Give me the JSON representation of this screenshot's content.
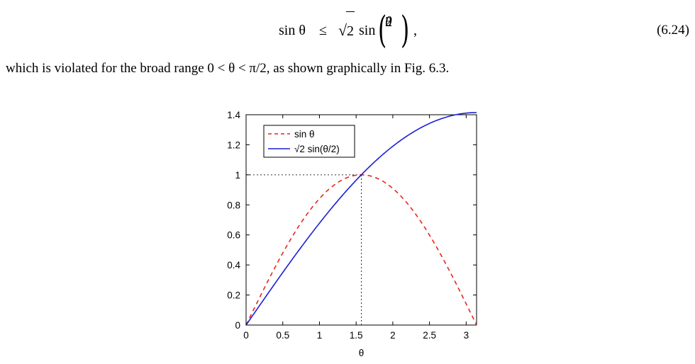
{
  "equation": {
    "lhs": "sin θ",
    "relation": "≤",
    "sqrt_radicand": "2",
    "func": "sin",
    "frac_numerator": "θ",
    "frac_denominator": "2",
    "trailing": ",",
    "number": "(6.24)"
  },
  "text": {
    "sentence": "which is violated for the broad range 0 < θ < π/2, as shown graphically in Fig. 6.3."
  },
  "chart_data": {
    "type": "line",
    "title": "",
    "xlabel": "θ",
    "ylabel": "",
    "xlim": [
      0,
      3.14159
    ],
    "ylim": [
      0,
      1.4
    ],
    "xticks": [
      "0",
      "0.5",
      "1",
      "1.5",
      "2",
      "2.5",
      "3"
    ],
    "yticks": [
      "0",
      "0.2",
      "0.4",
      "0.6",
      "0.8",
      "1",
      "1.2",
      "1.4"
    ],
    "legend_position": "top-left",
    "grid": false,
    "series": [
      {
        "name": "sin θ",
        "function": "sin(x)",
        "color": "#e8261c",
        "style": "dashed"
      },
      {
        "name": "√2 sin(θ/2)",
        "function": "sqrt(2)*sin(x/2)",
        "color": "#1a1fd6",
        "style": "solid"
      }
    ],
    "reference_lines": [
      {
        "kind": "horizontal",
        "y": 1,
        "x_from": 0,
        "x_to": 1.5708,
        "style": "dotted"
      },
      {
        "kind": "vertical",
        "x": 1.5708,
        "y_from": 0,
        "y_to": 1,
        "style": "dotted"
      }
    ]
  }
}
